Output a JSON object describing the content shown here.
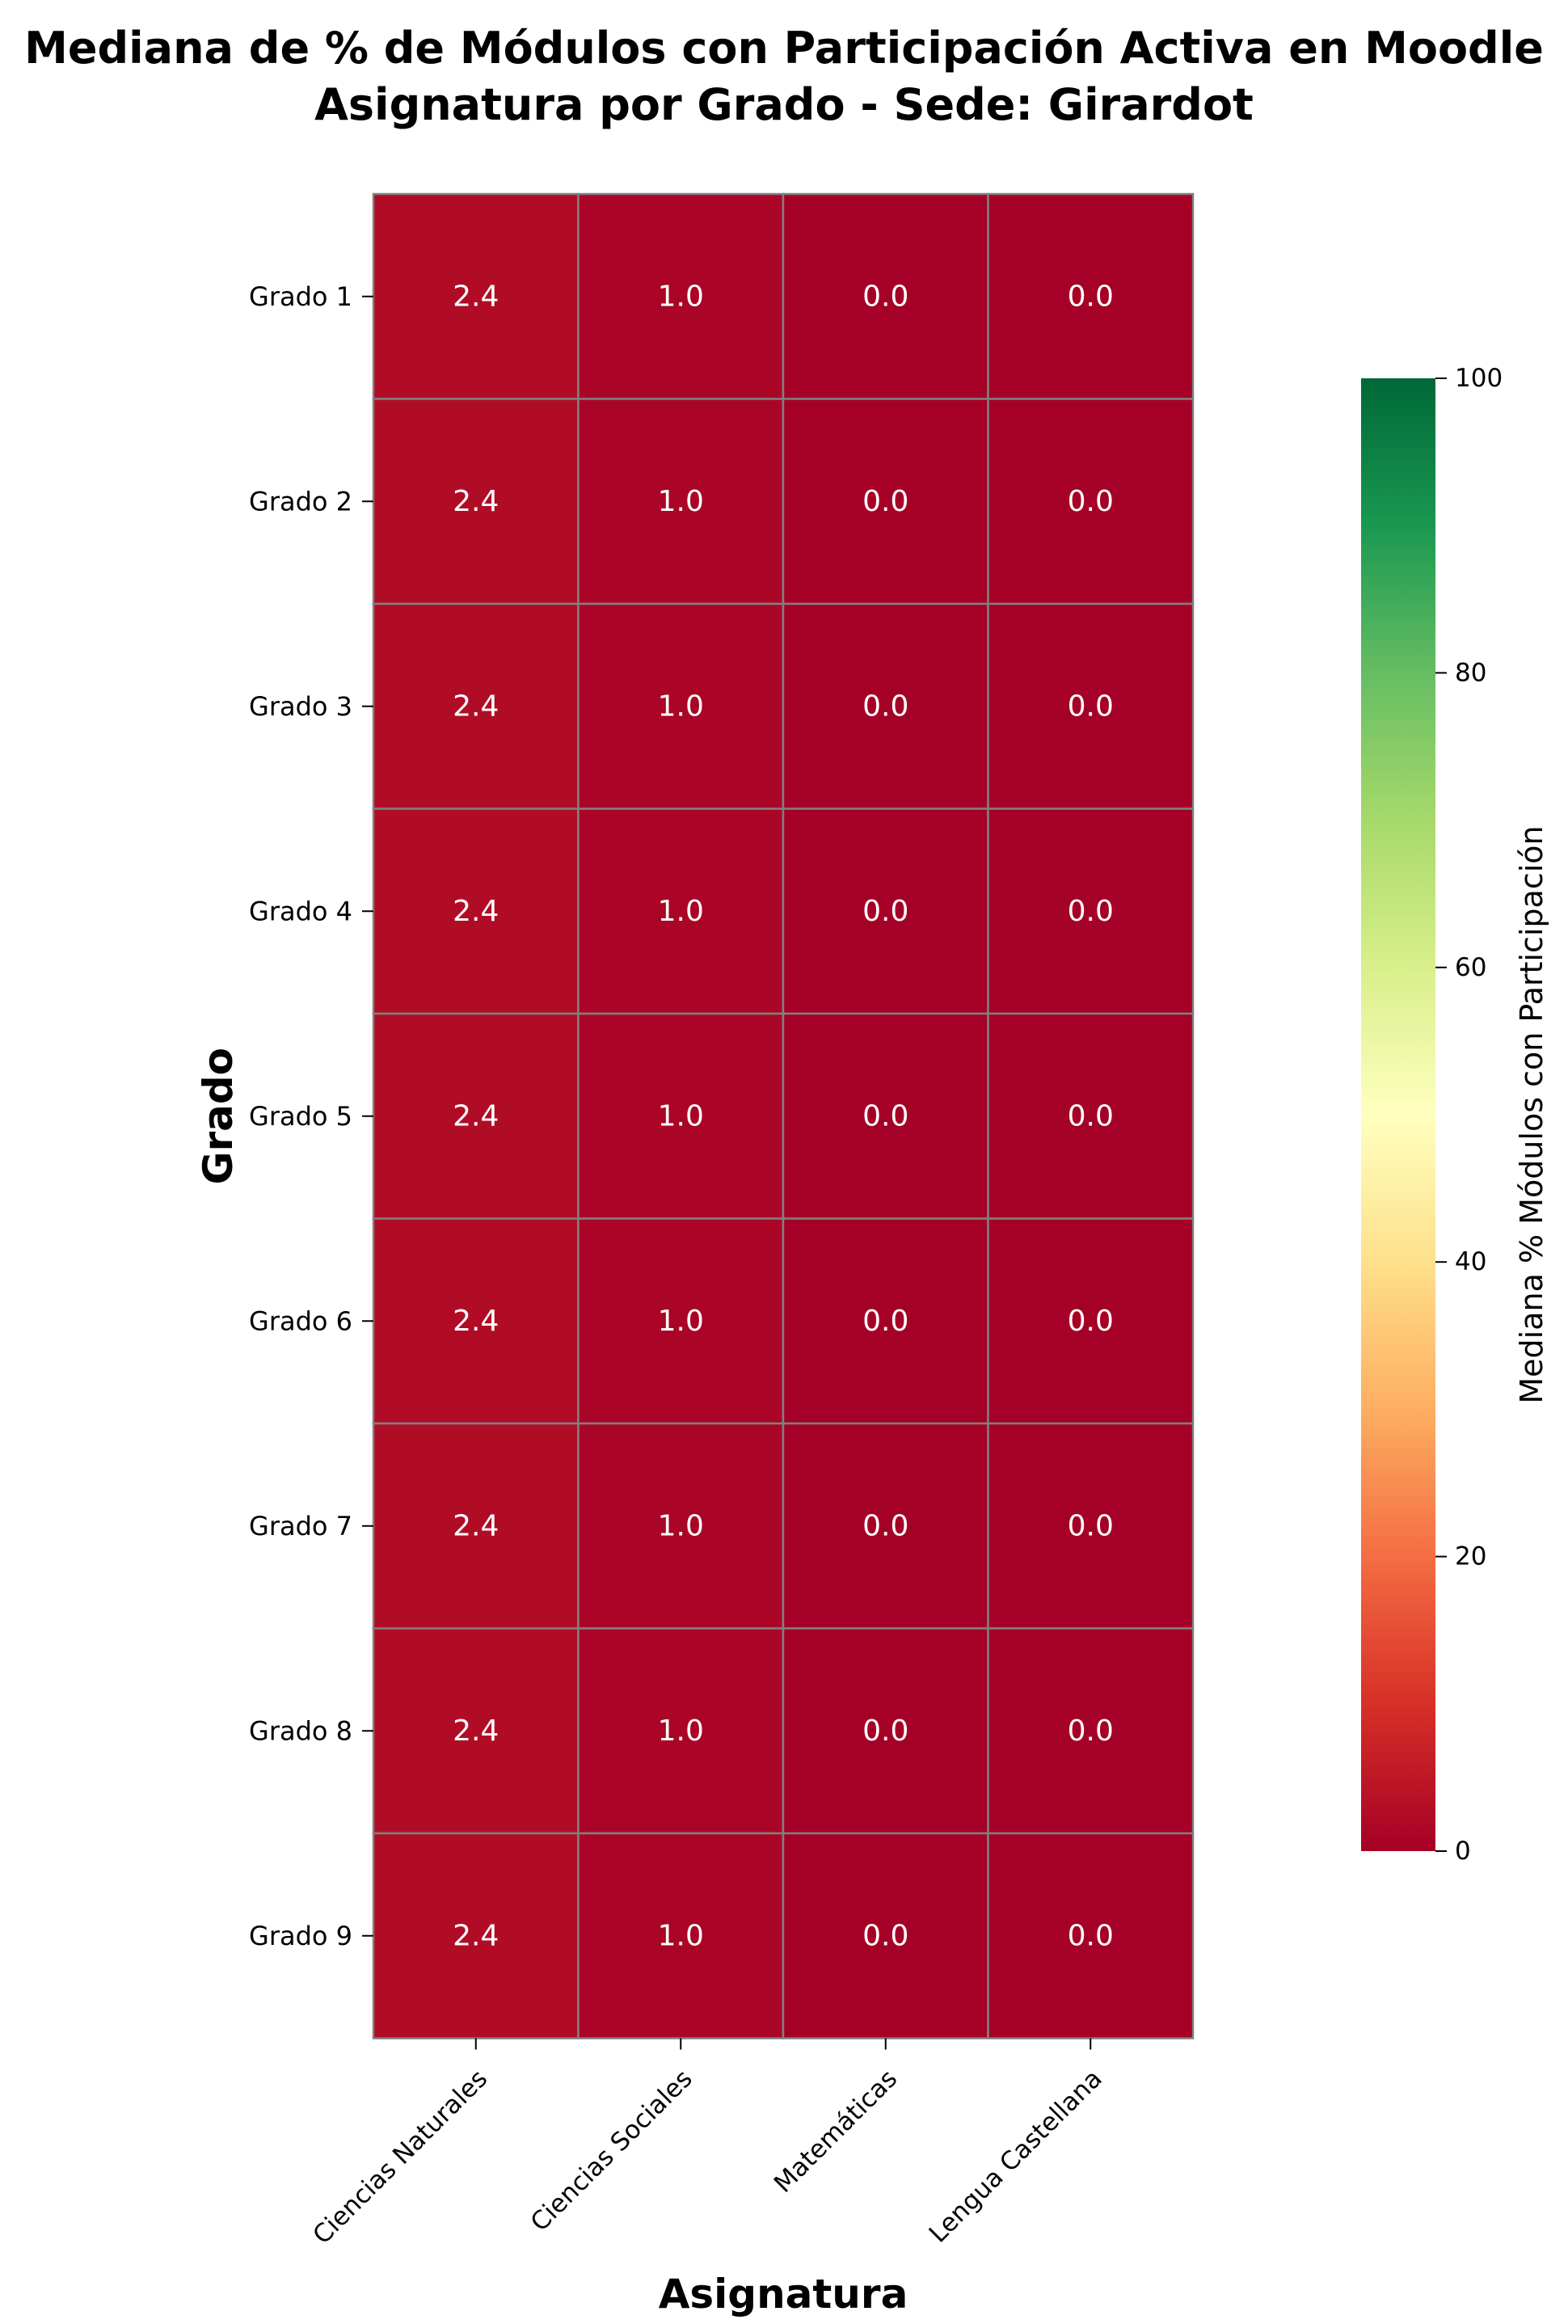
{
  "chart_data": {
    "type": "heatmap",
    "title_lines": [
      "Mediana de % de Módulos con Participación Activa en Moodle",
      "Asignatura por Grado - Sede: Girardot"
    ],
    "xlabel": "Asignatura",
    "ylabel": "Grado",
    "x_categories": [
      "Ciencias Naturales",
      "Ciencias Sociales",
      "Matemáticas",
      "Lengua Castellana"
    ],
    "y_categories": [
      "Grado 1",
      "Grado 2",
      "Grado 3",
      "Grado 4",
      "Grado 5",
      "Grado 6",
      "Grado 7",
      "Grado 8",
      "Grado 9"
    ],
    "values": [
      [
        2.4,
        1.0,
        0.0,
        0.0
      ],
      [
        2.4,
        1.0,
        0.0,
        0.0
      ],
      [
        2.4,
        1.0,
        0.0,
        0.0
      ],
      [
        2.4,
        1.0,
        0.0,
        0.0
      ],
      [
        2.4,
        1.0,
        0.0,
        0.0
      ],
      [
        2.4,
        1.0,
        0.0,
        0.0
      ],
      [
        2.4,
        1.0,
        0.0,
        0.0
      ],
      [
        2.4,
        1.0,
        0.0,
        0.0
      ],
      [
        2.4,
        1.0,
        0.0,
        0.0
      ]
    ],
    "value_labels": [
      [
        "2.4",
        "1.0",
        "0.0",
        "0.0"
      ],
      [
        "2.4",
        "1.0",
        "0.0",
        "0.0"
      ],
      [
        "2.4",
        "1.0",
        "0.0",
        "0.0"
      ],
      [
        "2.4",
        "1.0",
        "0.0",
        "0.0"
      ],
      [
        "2.4",
        "1.0",
        "0.0",
        "0.0"
      ],
      [
        "2.4",
        "1.0",
        "0.0",
        "0.0"
      ],
      [
        "2.4",
        "1.0",
        "0.0",
        "0.0"
      ],
      [
        "2.4",
        "1.0",
        "0.0",
        "0.0"
      ],
      [
        "2.4",
        "1.0",
        "0.0",
        "0.0"
      ]
    ],
    "colorbar": {
      "label": "Mediana % Módulos con Participación",
      "range": [
        0,
        100
      ],
      "ticks": [
        0,
        20,
        40,
        60,
        80,
        100
      ],
      "tick_labels": [
        "0",
        "20",
        "40",
        "60",
        "80",
        "100"
      ],
      "colormap": "RdYlGn",
      "stops": [
        "#a50026",
        "#d73027",
        "#f46d43",
        "#fdae61",
        "#fee08b",
        "#ffffbf",
        "#d9ef8b",
        "#a6d96a",
        "#66bd63",
        "#1a9850",
        "#006837"
      ]
    },
    "colors": {
      "cell_border": "#808080",
      "cell_text": "#ffffff"
    },
    "grid": false
  }
}
